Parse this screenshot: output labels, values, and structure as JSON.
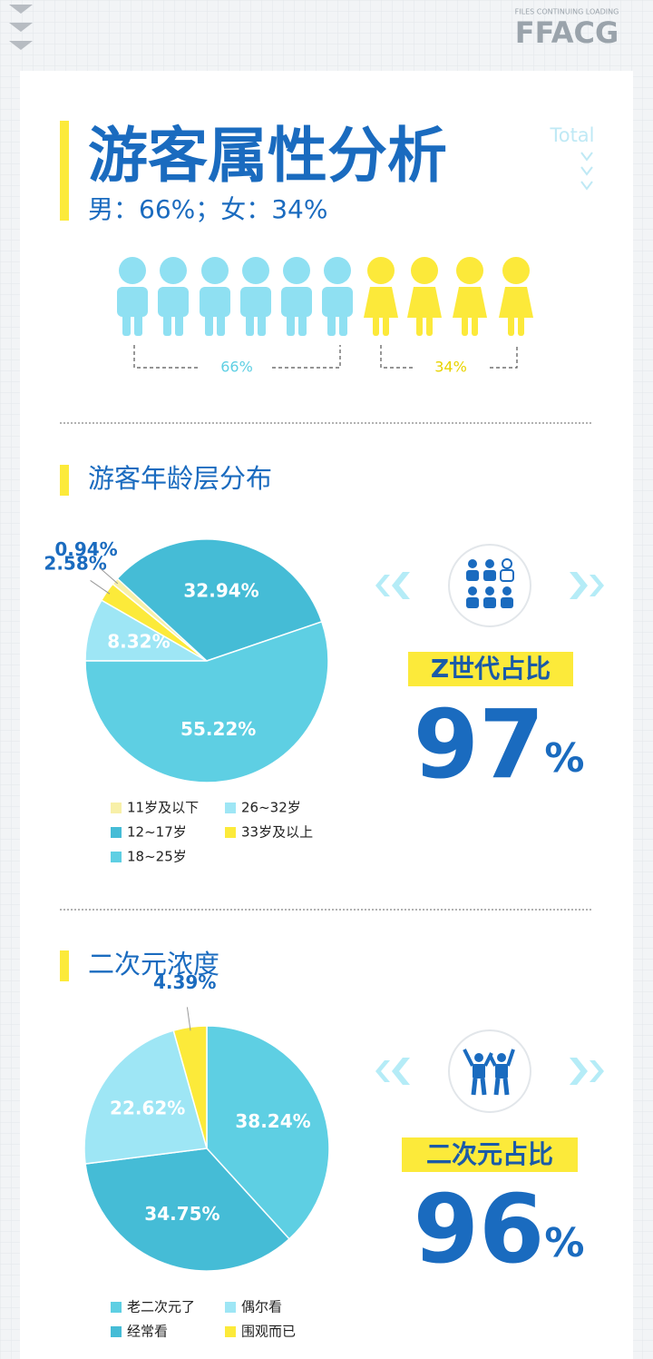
{
  "header": {
    "brand": "FFACG",
    "brand_tagline": "FILES CONTINUING LOADING",
    "title": "游客属性分析",
    "subtitle": "男：66%；女：34%",
    "total": "Total"
  },
  "gender": {
    "male_label": "66%",
    "female_label": "34%"
  },
  "chart_data": [
    {
      "type": "pie",
      "title": "游客年龄层分布",
      "categories": [
        "11岁及以下",
        "12~17岁",
        "18~25岁",
        "26~32岁",
        "33岁及以上"
      ],
      "values": [
        0.94,
        32.94,
        55.22,
        8.32,
        2.58
      ],
      "value_labels": [
        "0.94%",
        "32.94%",
        "55.22%",
        "8.32%",
        "2.58%"
      ],
      "colors": [
        "#f8f0a8",
        "#45bcd6",
        "#5ecfe3",
        "#9ee6f5",
        "#fcea3a"
      ]
    },
    {
      "type": "pie",
      "title": "二次元浓度",
      "categories": [
        "老二次元了",
        "经常看",
        "偶尔看",
        "围观而已"
      ],
      "values": [
        38.24,
        34.75,
        22.62,
        4.39
      ],
      "value_labels": [
        "38.24%",
        "34.75%",
        "22.62%",
        "4.39%"
      ],
      "colors": [
        "#5ecfe3",
        "#45bcd6",
        "#9ee6f5",
        "#fcea3a"
      ]
    }
  ],
  "highlights": [
    {
      "label": "Z世代占比",
      "value": 97,
      "unit": "%"
    },
    {
      "label": "二次元占比",
      "value": 96,
      "unit": "%"
    }
  ]
}
